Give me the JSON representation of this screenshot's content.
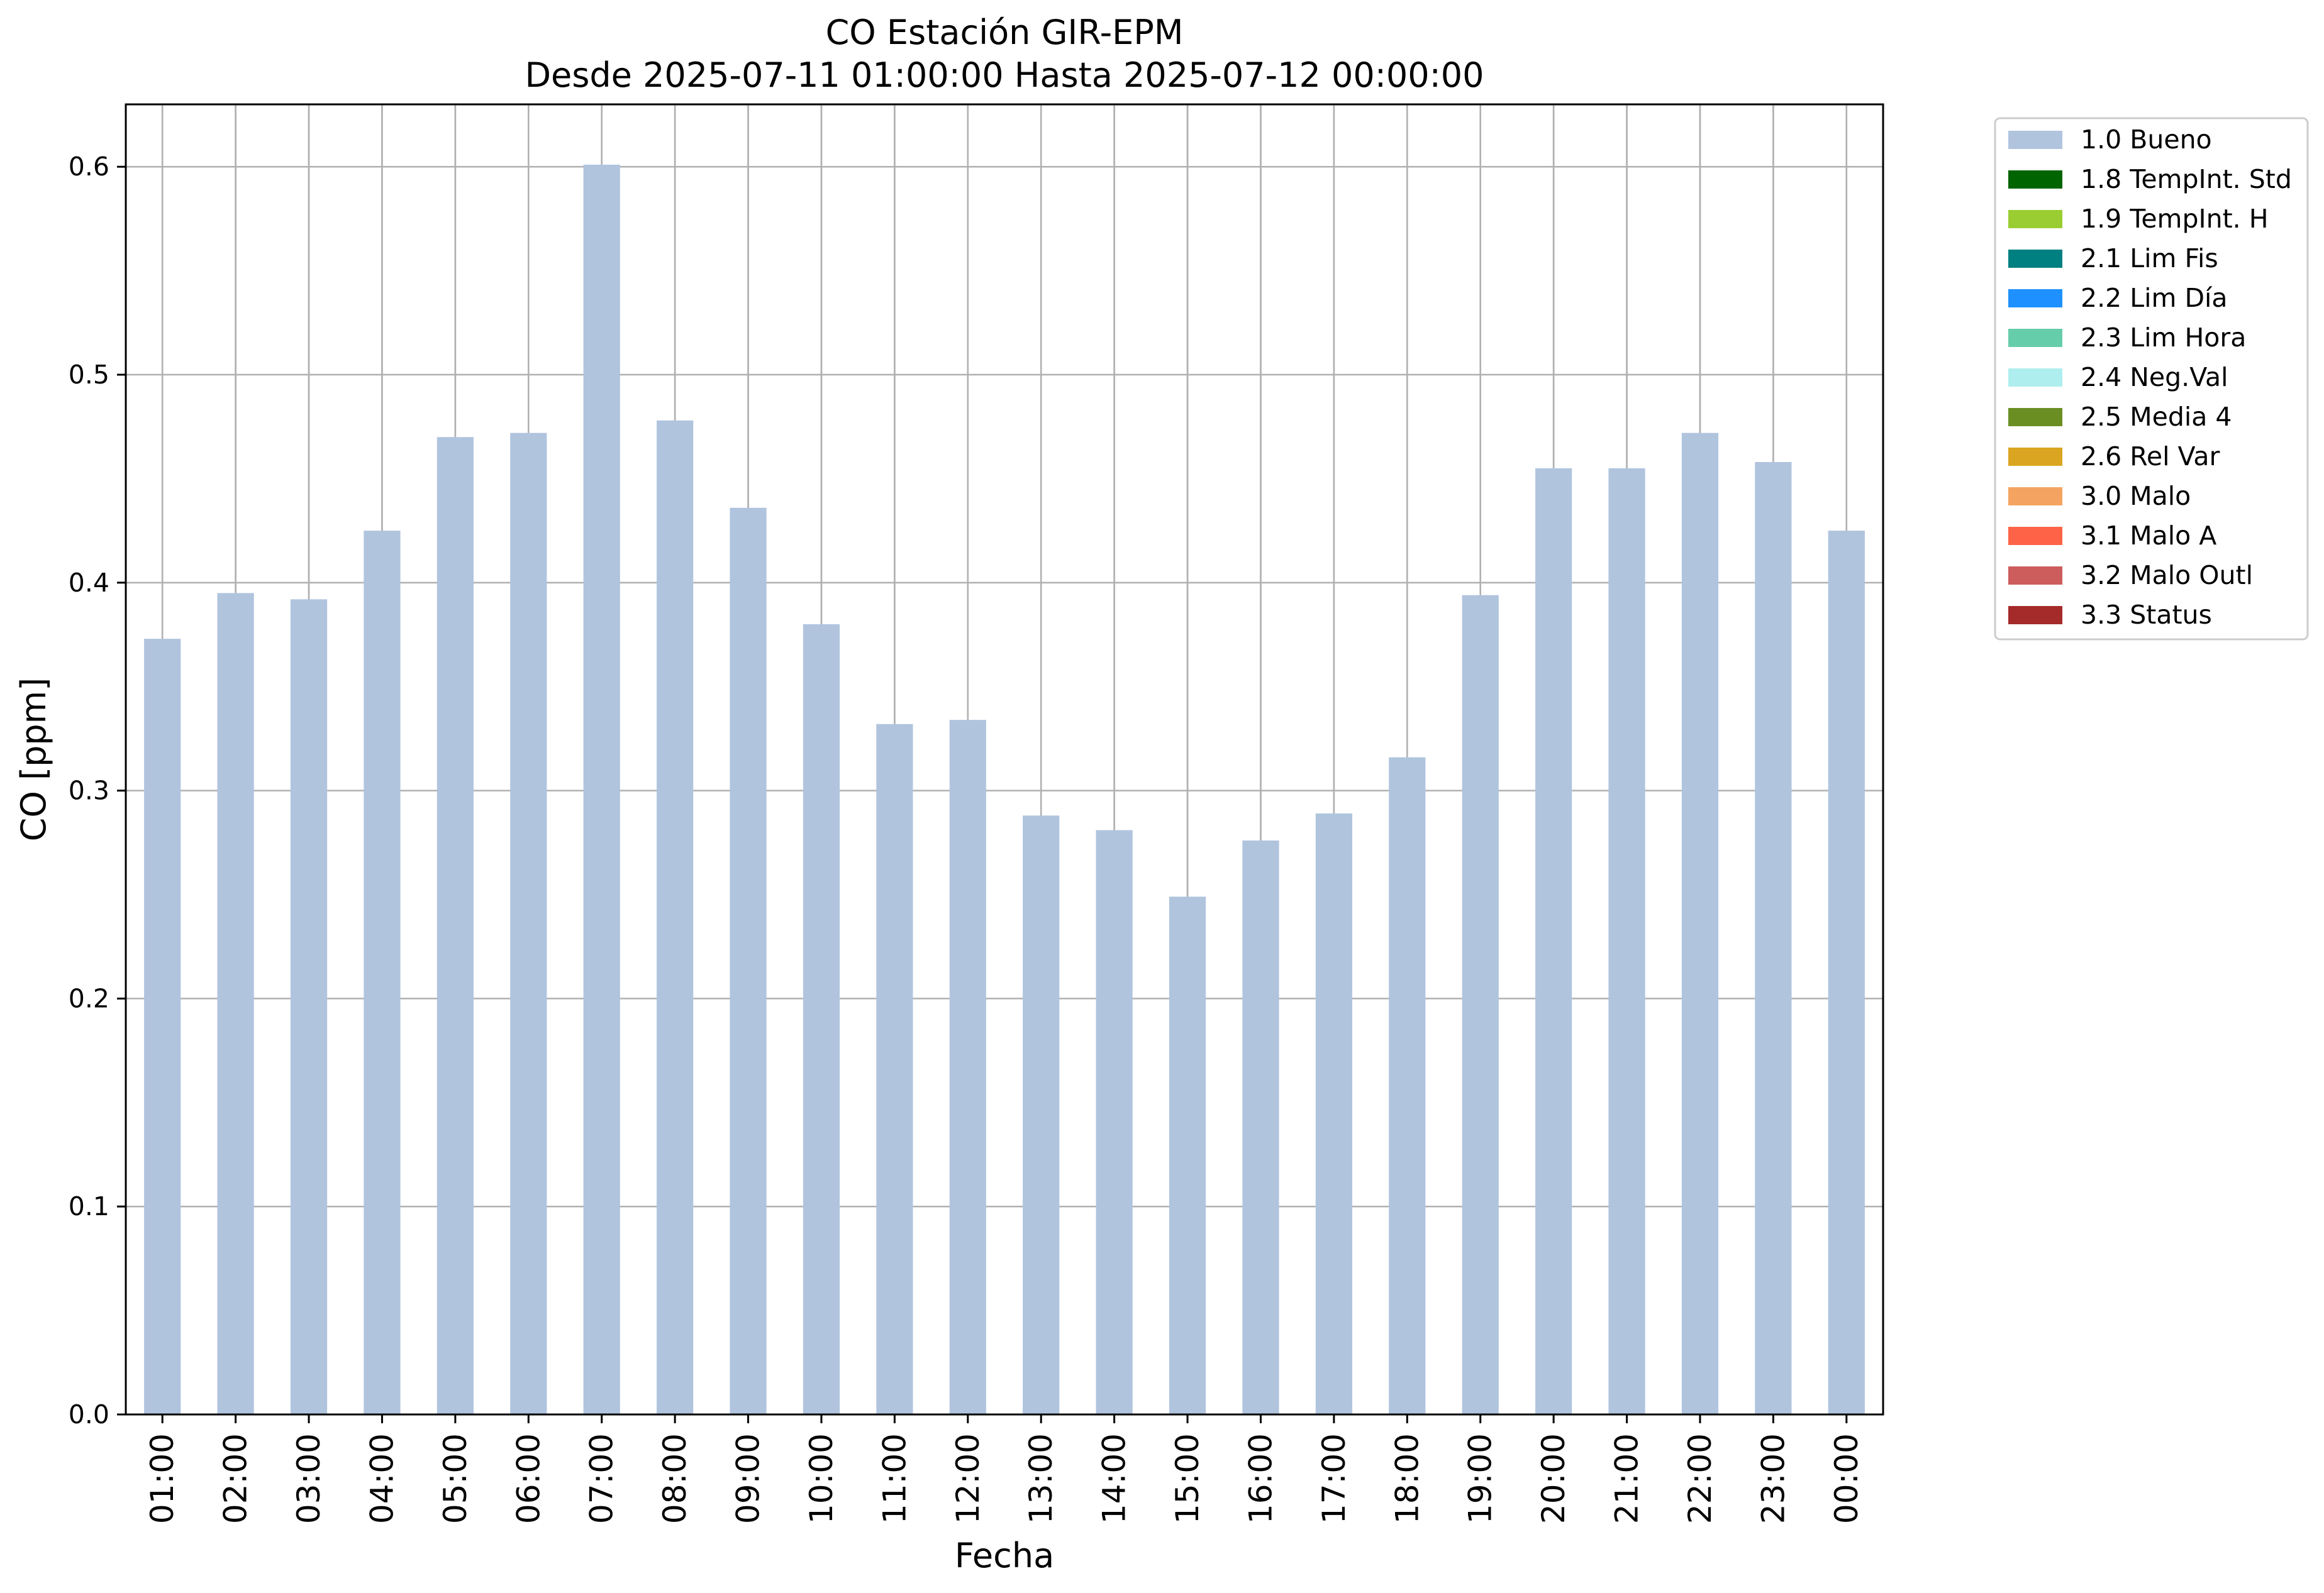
{
  "chart_data": {
    "type": "bar",
    "title": "CO Estación GIR-EPM",
    "subtitle": "Desde 2025-07-11 01:00:00 Hasta 2025-07-12 00:00:00",
    "xlabel": "Fecha",
    "ylabel": "CO [ppm]",
    "ylim": [
      0,
      0.63
    ],
    "yticks": [
      "0.0",
      "0.1",
      "0.2",
      "0.3",
      "0.4",
      "0.5",
      "0.6"
    ],
    "grid": true,
    "legend_position": "right",
    "categories": [
      "01:00",
      "02:00",
      "03:00",
      "04:00",
      "05:00",
      "06:00",
      "07:00",
      "08:00",
      "09:00",
      "10:00",
      "11:00",
      "12:00",
      "13:00",
      "14:00",
      "15:00",
      "16:00",
      "17:00",
      "18:00",
      "19:00",
      "20:00",
      "21:00",
      "22:00",
      "23:00",
      "00:00"
    ],
    "series": [
      {
        "name": "1.0 Bueno",
        "color": "#b0c4de",
        "values": [
          0.373,
          0.395,
          0.392,
          0.425,
          0.47,
          0.472,
          0.601,
          0.478,
          0.436,
          0.38,
          0.332,
          0.334,
          0.288,
          0.281,
          0.249,
          0.276,
          0.289,
          0.316,
          0.394,
          0.455,
          0.455,
          0.472,
          0.458,
          0.425
        ]
      }
    ],
    "legend": [
      {
        "label": "1.0 Bueno",
        "color": "#b0c4de"
      },
      {
        "label": "1.8 TempInt. Std",
        "color": "#006400"
      },
      {
        "label": "1.9 TempInt. H",
        "color": "#9acd32"
      },
      {
        "label": "2.1 Lim Fis",
        "color": "#008080"
      },
      {
        "label": "2.2 Lim Día",
        "color": "#1e90ff"
      },
      {
        "label": "2.3 Lim Hora",
        "color": "#66cdaa"
      },
      {
        "label": "2.4 Neg.Val",
        "color": "#afeeee"
      },
      {
        "label": "2.5 Media 4",
        "color": "#6b8e23"
      },
      {
        "label": "2.6 Rel Var",
        "color": "#daa520"
      },
      {
        "label": "3.0 Malo",
        "color": "#f4a460"
      },
      {
        "label": "3.1 Malo A",
        "color": "#ff6347"
      },
      {
        "label": "3.2 Malo Outl",
        "color": "#cd5c5c"
      },
      {
        "label": "3.3 Status",
        "color": "#a52a2a"
      }
    ]
  }
}
